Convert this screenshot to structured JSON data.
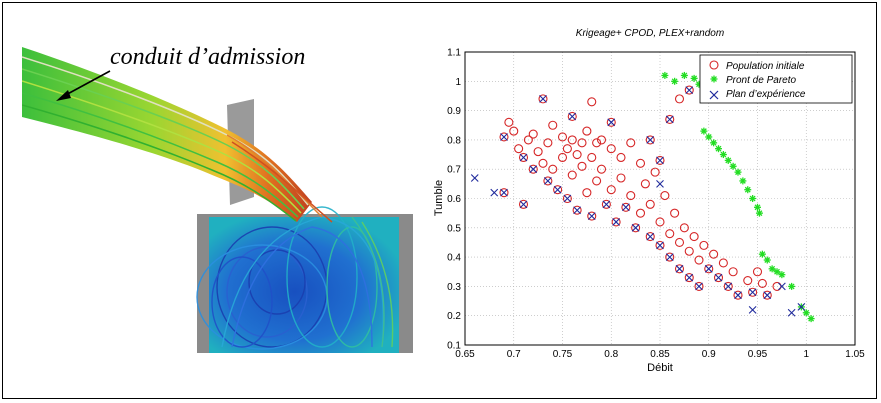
{
  "cfd_panel": {
    "annotation": "conduit d’admission"
  },
  "colors": {
    "initial": "#d62728",
    "pareto": "#22dd22",
    "plan": "#1f2a9c"
  },
  "chart_data": {
    "type": "scatter",
    "title": "Krigeage+ CPOD, PLEX+random",
    "xlabel": "Débit",
    "ylabel": "Tumble",
    "xlim": [
      0.65,
      1.05
    ],
    "ylim": [
      0.1,
      1.1
    ],
    "xticks": [
      "0.65",
      "0.7",
      "0.75",
      "0.8",
      "0.85",
      "0.9",
      "0.95",
      "1",
      "1.05"
    ],
    "yticks": [
      "0.1",
      "0.2",
      "0.3",
      "0.4",
      "0.5",
      "0.6",
      "0.7",
      "0.8",
      "0.9",
      "1",
      "1.1"
    ],
    "grid": true,
    "legend_position": "top-right",
    "series": [
      {
        "name": "Population initiale",
        "marker": "circle",
        "points": [
          [
            0.69,
            0.81
          ],
          [
            0.695,
            0.86
          ],
          [
            0.7,
            0.83
          ],
          [
            0.705,
            0.77
          ],
          [
            0.71,
            0.74
          ],
          [
            0.715,
            0.8
          ],
          [
            0.72,
            0.82
          ],
          [
            0.72,
            0.7
          ],
          [
            0.725,
            0.76
          ],
          [
            0.73,
            0.72
          ],
          [
            0.735,
            0.79
          ],
          [
            0.735,
            0.66
          ],
          [
            0.74,
            0.85
          ],
          [
            0.74,
            0.7
          ],
          [
            0.745,
            0.63
          ],
          [
            0.75,
            0.81
          ],
          [
            0.75,
            0.74
          ],
          [
            0.755,
            0.77
          ],
          [
            0.755,
            0.6
          ],
          [
            0.76,
            0.8
          ],
          [
            0.76,
            0.68
          ],
          [
            0.765,
            0.75
          ],
          [
            0.765,
            0.56
          ],
          [
            0.77,
            0.79
          ],
          [
            0.77,
            0.71
          ],
          [
            0.775,
            0.62
          ],
          [
            0.775,
            0.83
          ],
          [
            0.78,
            0.74
          ],
          [
            0.78,
            0.54
          ],
          [
            0.785,
            0.79
          ],
          [
            0.785,
            0.66
          ],
          [
            0.79,
            0.8
          ],
          [
            0.79,
            0.7
          ],
          [
            0.795,
            0.58
          ],
          [
            0.8,
            0.77
          ],
          [
            0.8,
            0.63
          ],
          [
            0.805,
            0.52
          ],
          [
            0.81,
            0.74
          ],
          [
            0.81,
            0.67
          ],
          [
            0.815,
            0.57
          ],
          [
            0.82,
            0.79
          ],
          [
            0.82,
            0.61
          ],
          [
            0.825,
            0.5
          ],
          [
            0.83,
            0.72
          ],
          [
            0.83,
            0.55
          ],
          [
            0.835,
            0.65
          ],
          [
            0.84,
            0.47
          ],
          [
            0.84,
            0.58
          ],
          [
            0.845,
            0.69
          ],
          [
            0.85,
            0.52
          ],
          [
            0.85,
            0.44
          ],
          [
            0.855,
            0.61
          ],
          [
            0.86,
            0.48
          ],
          [
            0.86,
            0.4
          ],
          [
            0.865,
            0.55
          ],
          [
            0.87,
            0.45
          ],
          [
            0.87,
            0.36
          ],
          [
            0.875,
            0.5
          ],
          [
            0.88,
            0.42
          ],
          [
            0.88,
            0.33
          ],
          [
            0.885,
            0.47
          ],
          [
            0.89,
            0.39
          ],
          [
            0.89,
            0.3
          ],
          [
            0.895,
            0.44
          ],
          [
            0.9,
            0.36
          ],
          [
            0.905,
            0.41
          ],
          [
            0.91,
            0.33
          ],
          [
            0.915,
            0.38
          ],
          [
            0.92,
            0.3
          ],
          [
            0.925,
            0.35
          ],
          [
            0.93,
            0.27
          ],
          [
            0.94,
            0.32
          ],
          [
            0.945,
            0.28
          ],
          [
            0.95,
            0.35
          ],
          [
            0.955,
            0.31
          ],
          [
            0.96,
            0.27
          ],
          [
            0.97,
            0.3
          ],
          [
            0.78,
            0.93
          ],
          [
            0.73,
            0.94
          ],
          [
            0.8,
            0.86
          ],
          [
            0.76,
            0.88
          ],
          [
            0.69,
            0.62
          ],
          [
            0.71,
            0.58
          ],
          [
            0.86,
            0.87
          ],
          [
            0.87,
            0.94
          ],
          [
            0.88,
            0.97
          ],
          [
            0.84,
            0.8
          ],
          [
            0.85,
            0.73
          ]
        ]
      },
      {
        "name": "Pront de Pareto",
        "marker": "star",
        "points": [
          [
            0.855,
            1.02
          ],
          [
            0.865,
            1.0
          ],
          [
            0.875,
            1.02
          ],
          [
            0.885,
            1.01
          ],
          [
            0.89,
            0.99
          ],
          [
            0.895,
            0.96
          ],
          [
            0.895,
            0.83
          ],
          [
            0.9,
            0.81
          ],
          [
            0.905,
            0.79
          ],
          [
            0.91,
            0.77
          ],
          [
            0.915,
            0.75
          ],
          [
            0.92,
            0.73
          ],
          [
            0.925,
            0.71
          ],
          [
            0.93,
            0.69
          ],
          [
            0.935,
            0.66
          ],
          [
            0.94,
            0.63
          ],
          [
            0.945,
            0.6
          ],
          [
            0.95,
            0.57
          ],
          [
            0.952,
            0.55
          ],
          [
            0.955,
            0.41
          ],
          [
            0.96,
            0.39
          ],
          [
            0.965,
            0.36
          ],
          [
            0.97,
            0.35
          ],
          [
            0.975,
            0.34
          ],
          [
            0.985,
            0.3
          ],
          [
            0.995,
            0.23
          ],
          [
            1.0,
            0.21
          ],
          [
            1.005,
            0.19
          ]
        ]
      },
      {
        "name": "Plan d’expérience",
        "marker": "x",
        "points": [
          [
            0.69,
            0.81
          ],
          [
            0.71,
            0.74
          ],
          [
            0.72,
            0.7
          ],
          [
            0.735,
            0.66
          ],
          [
            0.745,
            0.63
          ],
          [
            0.755,
            0.6
          ],
          [
            0.765,
            0.56
          ],
          [
            0.78,
            0.54
          ],
          [
            0.795,
            0.58
          ],
          [
            0.805,
            0.52
          ],
          [
            0.815,
            0.57
          ],
          [
            0.825,
            0.5
          ],
          [
            0.84,
            0.47
          ],
          [
            0.85,
            0.44
          ],
          [
            0.86,
            0.4
          ],
          [
            0.87,
            0.36
          ],
          [
            0.88,
            0.33
          ],
          [
            0.89,
            0.3
          ],
          [
            0.9,
            0.36
          ],
          [
            0.91,
            0.33
          ],
          [
            0.92,
            0.3
          ],
          [
            0.93,
            0.27
          ],
          [
            0.945,
            0.28
          ],
          [
            0.96,
            0.27
          ],
          [
            0.73,
            0.94
          ],
          [
            0.76,
            0.88
          ],
          [
            0.8,
            0.86
          ],
          [
            0.69,
            0.62
          ],
          [
            0.71,
            0.58
          ],
          [
            0.85,
            0.73
          ],
          [
            0.84,
            0.8
          ],
          [
            0.86,
            0.87
          ],
          [
            0.88,
            0.97
          ],
          [
            0.66,
            0.67
          ],
          [
            0.68,
            0.62
          ],
          [
            0.995,
            0.23
          ],
          [
            0.985,
            0.21
          ],
          [
            0.975,
            0.3
          ],
          [
            0.945,
            0.22
          ],
          [
            0.85,
            0.65
          ]
        ]
      }
    ]
  }
}
